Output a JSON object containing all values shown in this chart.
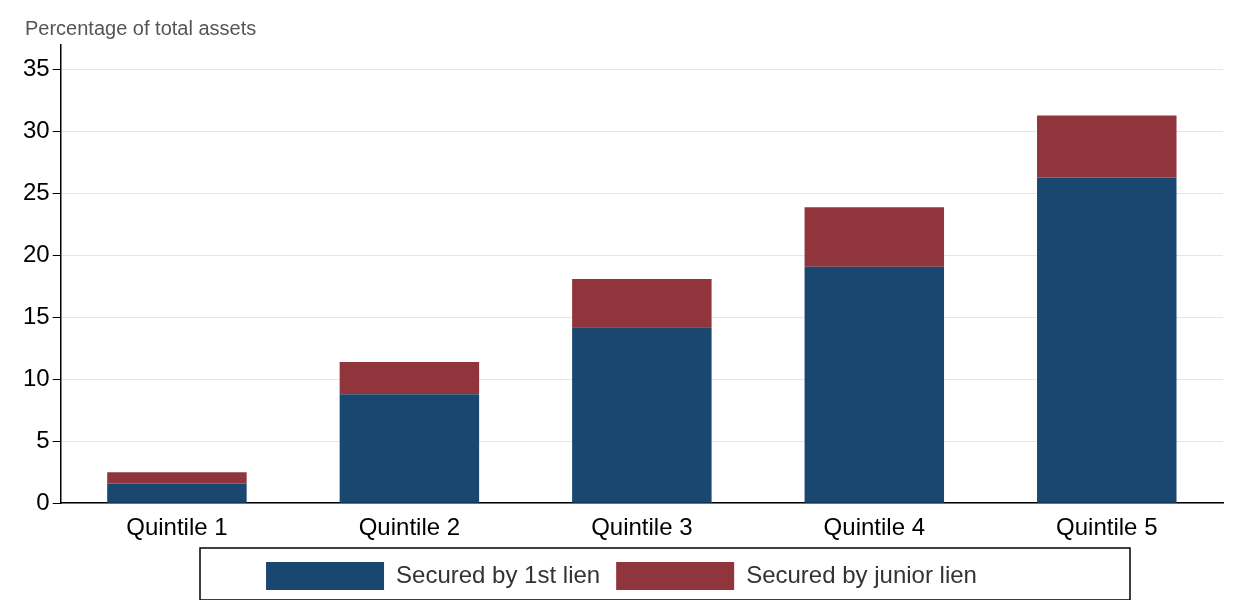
{
  "chart_data": {
    "type": "bar",
    "ylabel": "Percentage of total assets",
    "categories": [
      "Quintile 1",
      "Quintile 2",
      "Quintile 3",
      "Quintile 4",
      "Quintile 5"
    ],
    "series": [
      {
        "name": "Secured by 1st lien",
        "color": "#1a476f",
        "values": [
          1.6,
          8.8,
          14.2,
          19.1,
          26.3
        ]
      },
      {
        "name": "Secured by junior lien",
        "color": "#90353b",
        "values": [
          0.9,
          2.6,
          3.9,
          4.8,
          5.0
        ]
      }
    ],
    "stacked": true,
    "ylim": [
      0,
      37
    ],
    "yticks": [
      0,
      5,
      10,
      15,
      20,
      25,
      30,
      35
    ],
    "grid": "y",
    "legend": "bottom"
  }
}
